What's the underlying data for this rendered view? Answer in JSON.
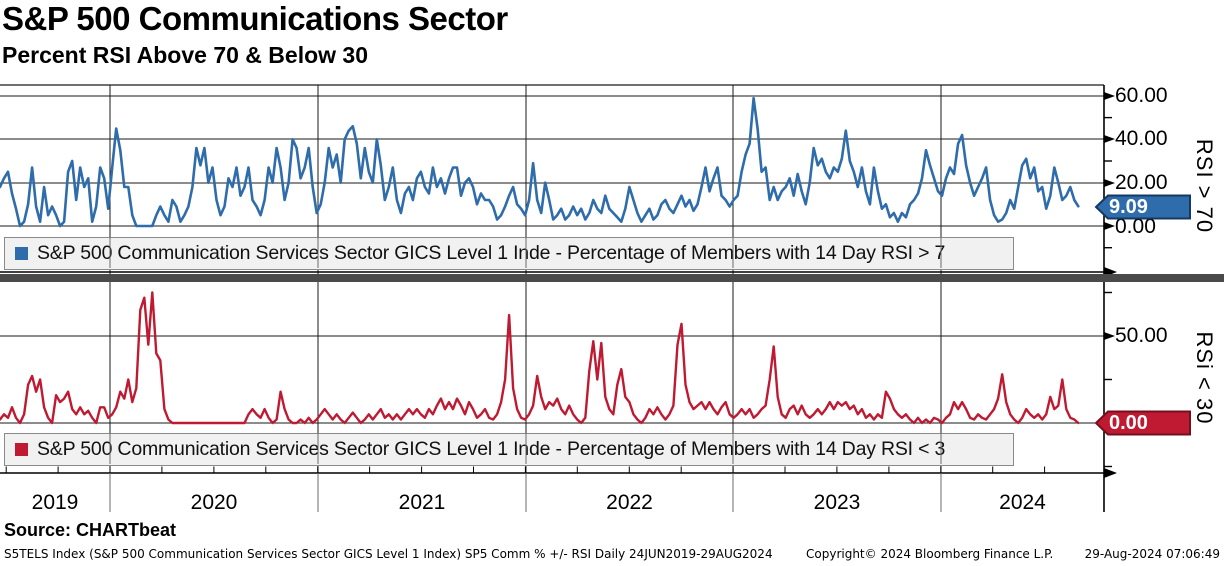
{
  "header": {
    "title": "S&P 500 Communications Sector",
    "subtitle": "Percent RSI Above 70 & Below 30"
  },
  "top_panel": {
    "legend_label": "S&P 500 Communication Services Sector GICS Level 1 Inde - Percentage of Members with 14 Day RSI > 7",
    "axis_title": "RSI > 70",
    "ticks": [
      "60.00",
      "40.00",
      "20.00",
      "0.00"
    ],
    "last_value_label": "9.09",
    "line_color": "#2e6cab",
    "tag_fill": "#2e6cab",
    "tag_border": "#17395f"
  },
  "bottom_panel": {
    "legend_label": "S&P 500 Communication Services Sector GICS Level 1 Inde - Percentage of Members with 14 Day RSI < 3",
    "axis_title": "RSi < 30",
    "ticks": [
      "50.00"
    ],
    "last_value_label": "0.00",
    "line_color": "#bf1a31",
    "tag_fill": "#bf1a31",
    "tag_border": "#73101f"
  },
  "x_axis": {
    "years": [
      "2019",
      "2020",
      "2021",
      "2022",
      "2023",
      "2024"
    ],
    "range_label": "24JUN2019-29AUG2024"
  },
  "source_line": "Source: CHARTbeat",
  "footer": {
    "left": "S5TELS Index (S&P 500 Communication Services Sector GICS Level 1 Index) SP5 Comm % +/- RSI  Daily 24JUN2019-29AUG2024",
    "center": "Copyright© 2024 Bloomberg Finance L.P.",
    "right": "29-Aug-2024 07:06:49"
  },
  "chart_data": [
    {
      "type": "line",
      "title": "Percentage of Members with 14 Day RSI > 70",
      "series_name": "S&P 500 Communication Services Sector GICS Level 1 Index - % of Members with 14 Day RSI > 70",
      "color": "#2e6cab",
      "x_axis": {
        "start": "24JUN2019",
        "end": "29AUG2024",
        "tick_years": [
          2019,
          2020,
          2021,
          2022,
          2023,
          2024
        ]
      },
      "y_axis": {
        "tick_values": [
          0,
          20,
          40,
          60
        ],
        "label": "RSI > 70",
        "grid": true
      },
      "last_value": 9.09,
      "x_start_year": 2019.47,
      "x_step_years": 0.0193,
      "values": [
        18,
        22,
        25,
        15,
        8,
        0,
        2,
        10,
        27,
        9,
        2,
        18,
        5,
        9,
        5,
        0,
        2,
        25,
        30,
        12,
        27,
        18,
        22,
        2,
        9,
        27,
        22,
        8,
        27,
        45,
        35,
        18,
        18,
        5,
        0,
        0,
        0,
        0,
        0,
        5,
        9,
        5,
        2,
        12,
        9,
        2,
        5,
        9,
        18,
        36,
        28,
        36,
        20,
        27,
        12,
        5,
        9,
        22,
        18,
        27,
        14,
        18,
        27,
        12,
        9,
        5,
        12,
        27,
        20,
        36,
        27,
        12,
        20,
        40,
        36,
        22,
        27,
        36,
        18,
        6,
        10,
        20,
        36,
        27,
        33,
        20,
        40,
        44,
        46,
        38,
        22,
        36,
        25,
        20,
        40,
        28,
        12,
        18,
        27,
        12,
        6,
        15,
        18,
        12,
        22,
        25,
        18,
        15,
        27,
        18,
        22,
        15,
        22,
        27,
        27,
        14,
        20,
        22,
        18,
        10,
        15,
        12,
        12,
        9,
        3,
        5,
        9,
        14,
        18,
        10,
        8,
        5,
        12,
        29,
        12,
        6,
        20,
        12,
        3,
        5,
        8,
        3,
        5,
        9,
        5,
        8,
        3,
        6,
        12,
        8,
        6,
        14,
        8,
        6,
        4,
        2,
        8,
        18,
        12,
        6,
        2,
        5,
        8,
        3,
        5,
        10,
        12,
        8,
        6,
        10,
        14,
        9,
        12,
        7,
        10,
        18,
        27,
        16,
        22,
        27,
        14,
        12,
        9,
        12,
        14,
        25,
        33,
        38,
        59,
        45,
        25,
        27,
        12,
        18,
        12,
        16,
        18,
        22,
        14,
        24,
        16,
        10,
        20,
        36,
        28,
        31,
        25,
        22,
        27,
        25,
        31,
        44,
        30,
        25,
        18,
        27,
        16,
        10,
        27,
        16,
        8,
        10,
        4,
        6,
        2,
        6,
        4,
        10,
        12,
        15,
        22,
        35,
        28,
        22,
        16,
        14,
        22,
        27,
        24,
        38,
        42,
        28,
        20,
        14,
        18,
        22,
        27,
        12,
        5,
        2,
        3,
        6,
        12,
        8,
        18,
        28,
        31,
        22,
        27,
        16,
        18,
        8,
        14,
        27,
        20,
        12,
        14,
        18,
        12,
        9.09
      ]
    },
    {
      "type": "line",
      "title": "Percentage of Members with 14 Day RSI < 30",
      "series_name": "S&P 500 Communication Services Sector GICS Level 1 Index - % of Members with 14 Day RSI < 30",
      "color": "#bf1a31",
      "x_axis": {
        "start": "24JUN2019",
        "end": "29AUG2024",
        "tick_years": [
          2019,
          2020,
          2021,
          2022,
          2023,
          2024
        ]
      },
      "y_axis": {
        "tick_values": [
          0,
          50
        ],
        "label": "RSi < 30",
        "grid": true
      },
      "last_value": 0.0,
      "x_start_year": 2019.47,
      "x_step_years": 0.0193,
      "values": [
        2,
        5,
        3,
        9,
        3,
        0,
        5,
        22,
        27,
        18,
        25,
        9,
        3,
        0,
        16,
        12,
        14,
        18,
        8,
        5,
        9,
        5,
        7,
        3,
        0,
        9,
        9,
        3,
        5,
        9,
        18,
        14,
        25,
        12,
        20,
        65,
        72,
        45,
        75,
        40,
        36,
        8,
        2,
        0,
        0,
        0,
        0,
        0,
        0,
        0,
        0,
        0,
        0,
        0,
        0,
        0,
        0,
        0,
        0,
        0,
        0,
        0,
        5,
        8,
        5,
        3,
        8,
        3,
        0,
        2,
        18,
        8,
        2,
        0,
        0,
        2,
        0,
        3,
        0,
        2,
        5,
        8,
        5,
        2,
        5,
        2,
        0,
        3,
        6,
        3,
        0,
        2,
        5,
        2,
        5,
        8,
        3,
        5,
        2,
        5,
        2,
        5,
        8,
        5,
        8,
        5,
        3,
        8,
        5,
        10,
        14,
        8,
        12,
        8,
        14,
        10,
        5,
        12,
        8,
        3,
        5,
        8,
        3,
        2,
        5,
        12,
        25,
        62,
        20,
        8,
        3,
        2,
        5,
        10,
        27,
        15,
        8,
        12,
        10,
        14,
        8,
        5,
        10,
        5,
        2,
        0,
        3,
        30,
        47,
        25,
        46,
        15,
        8,
        5,
        22,
        31,
        15,
        12,
        5,
        2,
        0,
        3,
        8,
        5,
        9,
        5,
        2,
        5,
        10,
        45,
        57,
        22,
        12,
        8,
        10,
        12,
        8,
        12,
        8,
        5,
        9,
        12,
        5,
        3,
        5,
        8,
        5,
        8,
        3,
        5,
        8,
        10,
        25,
        44,
        15,
        5,
        3,
        8,
        10,
        5,
        10,
        5,
        3,
        5,
        8,
        5,
        8,
        12,
        8,
        12,
        10,
        12,
        8,
        10,
        5,
        8,
        3,
        5,
        2,
        5,
        3,
        18,
        14,
        8,
        5,
        3,
        5,
        2,
        0,
        3,
        0,
        2,
        0,
        3,
        2,
        0,
        3,
        5,
        12,
        8,
        12,
        8,
        3,
        2,
        5,
        3,
        2,
        5,
        8,
        14,
        28,
        12,
        5,
        2,
        0,
        3,
        8,
        5,
        3,
        5,
        2,
        5,
        15,
        8,
        10,
        25,
        8,
        3,
        2,
        0
      ]
    }
  ]
}
